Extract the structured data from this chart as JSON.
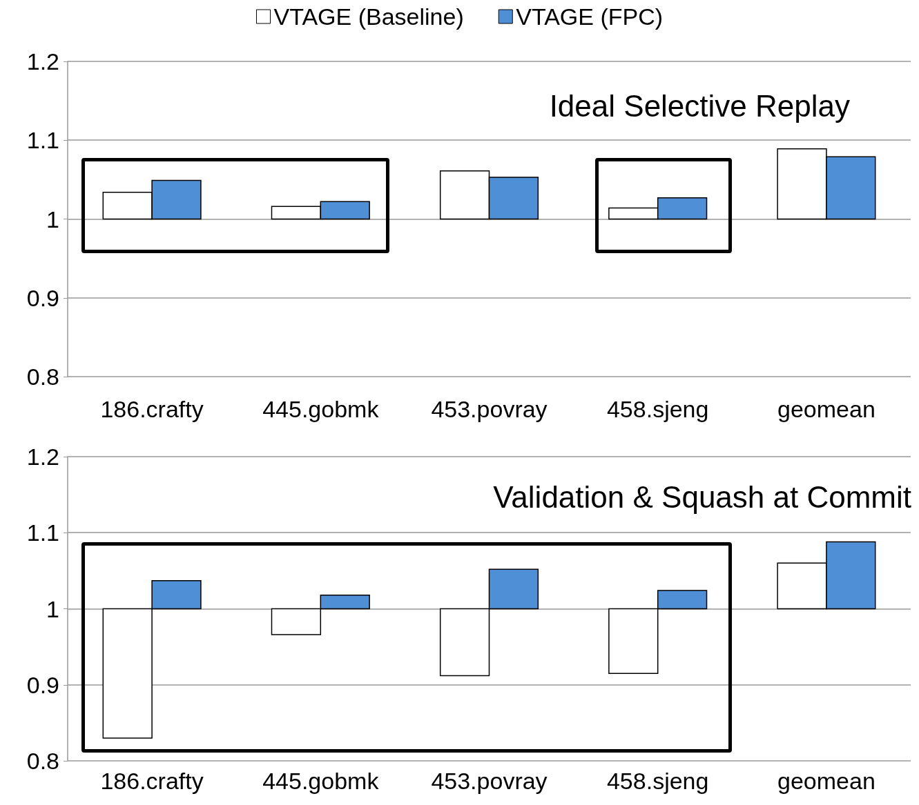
{
  "chart_data": [
    {
      "type": "bar",
      "title": "Ideal Selective Replay",
      "categories": [
        "186.crafty",
        "445.gobmk",
        "453.povray",
        "458.sjeng",
        "geomean"
      ],
      "series": [
        {
          "name": "VTAGE (Baseline)",
          "color": "#ffffff",
          "base": [
            1,
            1,
            1,
            1,
            1
          ],
          "values": [
            0.034,
            0.016,
            0.061,
            0.014,
            0.089
          ]
        },
        {
          "name": "VTAGE (FPC)",
          "color": "#4f8fd5",
          "base": [
            1,
            1,
            1,
            1,
            1
          ],
          "values": [
            0.049,
            0.022,
            0.053,
            0.027,
            0.079
          ]
        }
      ],
      "ylim": [
        0.8,
        1.2
      ],
      "yticks": [
        0.8,
        0.9,
        1,
        1.1,
        1.2
      ],
      "grid": "y",
      "legend": "top"
    },
    {
      "type": "bar",
      "title": "Validation & Squash at Commit",
      "categories": [
        "186.crafty",
        "445.gobmk",
        "453.povray",
        "458.sjeng",
        "geomean"
      ],
      "series": [
        {
          "color": "#ffffff",
          "base": [
            1,
            1,
            1,
            1,
            1
          ],
          "values": [
            -0.17,
            -0.034,
            -0.088,
            -0.085,
            0.06
          ]
        },
        {
          "color": "#4f8fd5",
          "base": [
            1,
            1,
            1,
            1,
            1
          ],
          "values": [
            0.037,
            0.018,
            0.052,
            0.024,
            0.088
          ]
        }
      ],
      "ylim": [
        0.8,
        1.2
      ],
      "yticks": [
        0.8,
        0.9,
        1,
        1.1,
        1.2
      ],
      "grid": "y",
      "legend": false
    }
  ]
}
